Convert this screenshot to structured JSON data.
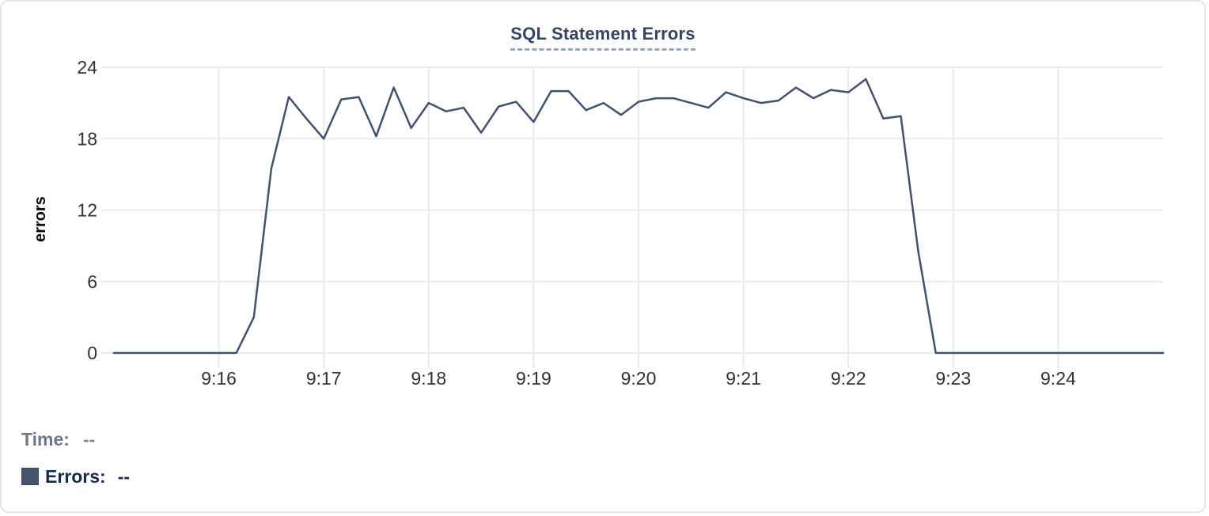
{
  "legend": {
    "time_label": "Time:",
    "time_value": "--",
    "errors_label": "Errors:",
    "errors_value": "--"
  },
  "colors": {
    "line": "#42526E",
    "swatch": "#44546F",
    "title": "#344563",
    "gridline": "#e9eaec",
    "tick_text": "#2e3237",
    "legend_time": "#6d7888",
    "legend_errors": "#172b4d"
  },
  "chart_data": {
    "type": "line",
    "title": "SQL Statement Errors",
    "ylabel": "errors",
    "ylim": [
      0,
      24
    ],
    "y_ticks": [
      0,
      6,
      12,
      18,
      24
    ],
    "grid": true,
    "legend_position": "bottom-left",
    "x_domain_seconds": [
      0,
      600
    ],
    "x_ticks": [
      {
        "label": "9:16",
        "t": 60
      },
      {
        "label": "9:17",
        "t": 120
      },
      {
        "label": "9:18",
        "t": 180
      },
      {
        "label": "9:19",
        "t": 240
      },
      {
        "label": "9:20",
        "t": 300
      },
      {
        "label": "9:21",
        "t": 360
      },
      {
        "label": "9:22",
        "t": 420
      },
      {
        "label": "9:23",
        "t": 480
      },
      {
        "label": "9:24",
        "t": 540
      }
    ],
    "series": [
      {
        "name": "Errors",
        "color": "#42526E",
        "t0_seconds": 0,
        "dt_seconds": 10,
        "values": [
          0,
          0,
          0,
          0,
          0,
          0,
          0,
          0,
          3,
          15.5,
          21.5,
          19.7,
          18,
          21.3,
          21.5,
          18.2,
          22.3,
          18.9,
          21,
          20.3,
          20.6,
          18.5,
          20.7,
          21.1,
          19.4,
          22,
          22,
          20.4,
          21,
          20,
          21.1,
          21.4,
          21.4,
          21,
          20.6,
          21.9,
          21.4,
          21,
          21.2,
          22.3,
          21.4,
          22.1,
          21.9,
          23,
          19.7,
          19.9,
          8.5,
          0,
          0,
          0,
          0,
          0,
          0,
          0,
          0,
          0,
          0,
          0,
          0,
          0,
          0
        ]
      }
    ]
  }
}
